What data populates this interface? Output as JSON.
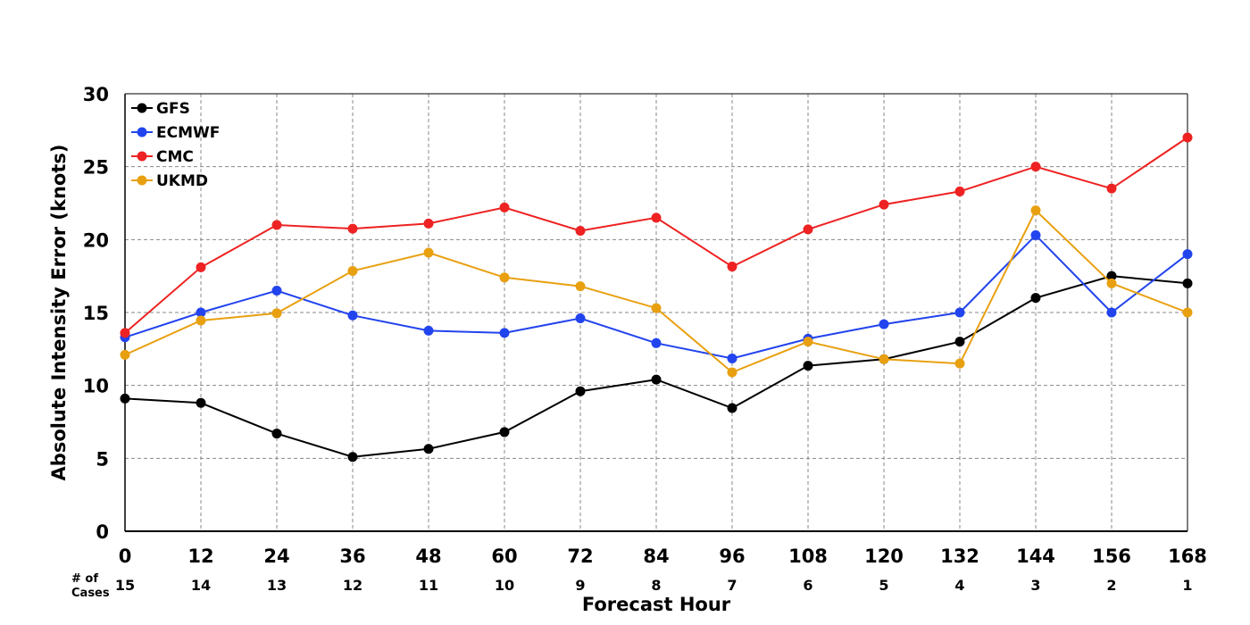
{
  "chart_data": {
    "type": "line",
    "xlabel": "Forecast Hour",
    "ylabel": "Absolute Intensity Error (knots)",
    "x": [
      0,
      12,
      24,
      36,
      48,
      60,
      72,
      84,
      96,
      108,
      120,
      132,
      144,
      156,
      168
    ],
    "xlim": [
      0,
      168
    ],
    "ylim": [
      0,
      30
    ],
    "yticks": [
      0,
      5,
      10,
      15,
      20,
      25,
      30
    ],
    "grid": true,
    "legend_position": "top-left",
    "cases_header": [
      "# of",
      "Cases"
    ],
    "cases": [
      15,
      14,
      13,
      12,
      11,
      10,
      9,
      8,
      7,
      6,
      5,
      4,
      3,
      2,
      1
    ],
    "series": [
      {
        "name": "GFS",
        "color": "#000000",
        "values": [
          9.1,
          8.8,
          6.7,
          5.1,
          5.65,
          6.8,
          9.6,
          10.4,
          8.45,
          11.35,
          11.8,
          13.0,
          16.0,
          17.5,
          17.0
        ]
      },
      {
        "name": "ECMWF",
        "color": "#2244ee",
        "values": [
          13.3,
          15.0,
          16.5,
          14.8,
          13.75,
          13.6,
          14.6,
          12.9,
          11.85,
          13.2,
          14.2,
          15.0,
          20.3,
          15.0,
          19.0
        ]
      },
      {
        "name": "CMC",
        "color": "#ee2222",
        "values": [
          13.6,
          18.1,
          21.0,
          20.75,
          21.1,
          22.2,
          20.6,
          21.5,
          18.15,
          20.7,
          22.4,
          23.3,
          25.0,
          23.5,
          27.0
        ]
      },
      {
        "name": "UKMD",
        "color": "#e8a010",
        "values": [
          12.1,
          14.45,
          14.95,
          17.85,
          19.1,
          17.4,
          16.8,
          15.3,
          10.9,
          13.0,
          11.8,
          11.5,
          22.0,
          17.0,
          15.0
        ]
      }
    ]
  }
}
